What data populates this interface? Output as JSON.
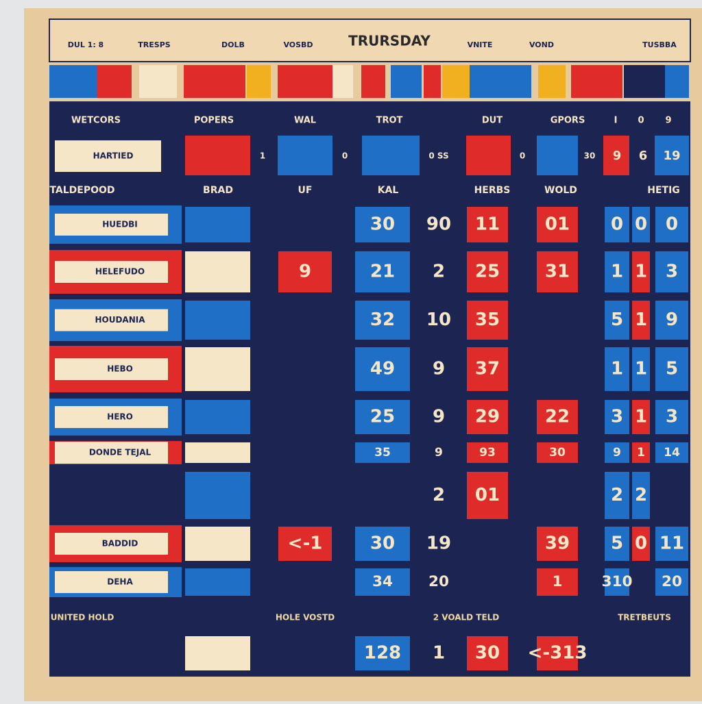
{
  "header": {
    "title": "TRURSDAY",
    "items": [
      "DUL 1: 8",
      "TRESPS",
      "DOLB",
      "VOSBD",
      "VNITE",
      "VOND",
      "TUSBBA"
    ]
  },
  "column_headers": [
    "WETCORS",
    "POPERS",
    "WAL",
    "TROT",
    "DUT",
    "GPORS",
    "I",
    "0",
    "9"
  ],
  "top_row": {
    "name": "HARTIED",
    "cells": [
      "1",
      "0",
      "0 SS",
      "0",
      "30",
      "9",
      "6",
      "19"
    ]
  },
  "column_headers_2": [
    "TALDEPOOD",
    "BRAD",
    "UF",
    "KAL",
    "HERBS",
    "WOLD",
    "HETIG"
  ],
  "rows": [
    {
      "name": "HUEDBI",
      "cells": [
        null,
        "30",
        "90",
        "11",
        "01",
        "0",
        "0",
        "0"
      ]
    },
    {
      "name": "HELEFUDO",
      "cells": [
        "9",
        "21",
        "2",
        "25",
        "31",
        "1",
        "1",
        "3"
      ]
    },
    {
      "name": "HOUDANIA",
      "cells": [
        null,
        "32",
        "10",
        "35",
        null,
        "5",
        "1",
        "9"
      ]
    },
    {
      "name": "HEBO",
      "cells": [
        null,
        "49",
        "9",
        "37",
        null,
        "1",
        "1",
        "5"
      ]
    },
    {
      "name": "HERO",
      "cells": [
        null,
        "25",
        "9",
        "29",
        "22",
        "3",
        "1",
        "3"
      ]
    },
    {
      "name": "DONDE TEJAL",
      "cells": [
        null,
        "35",
        "9",
        "93",
        "30",
        "9",
        "1",
        "14"
      ]
    },
    {
      "name": null,
      "cells": [
        null,
        null,
        "2",
        "01",
        null,
        "2",
        "2",
        null
      ]
    },
    {
      "name": "BADDID",
      "cells": [
        "<-1",
        "30",
        "19",
        null,
        "39",
        "5",
        "0",
        "11"
      ]
    },
    {
      "name": "DEHA",
      "cells": [
        null,
        "34",
        "20",
        null,
        "1",
        "310",
        null,
        "20"
      ]
    },
    {
      "name": null,
      "cells": [
        null,
        "128",
        "1",
        "30",
        "<-313",
        null,
        null,
        null
      ]
    }
  ],
  "footer_labels": [
    "UNITED HOLD",
    "HOLE VOSTD",
    "2 VOALD TELD",
    "TRETBEUTS"
  ]
}
